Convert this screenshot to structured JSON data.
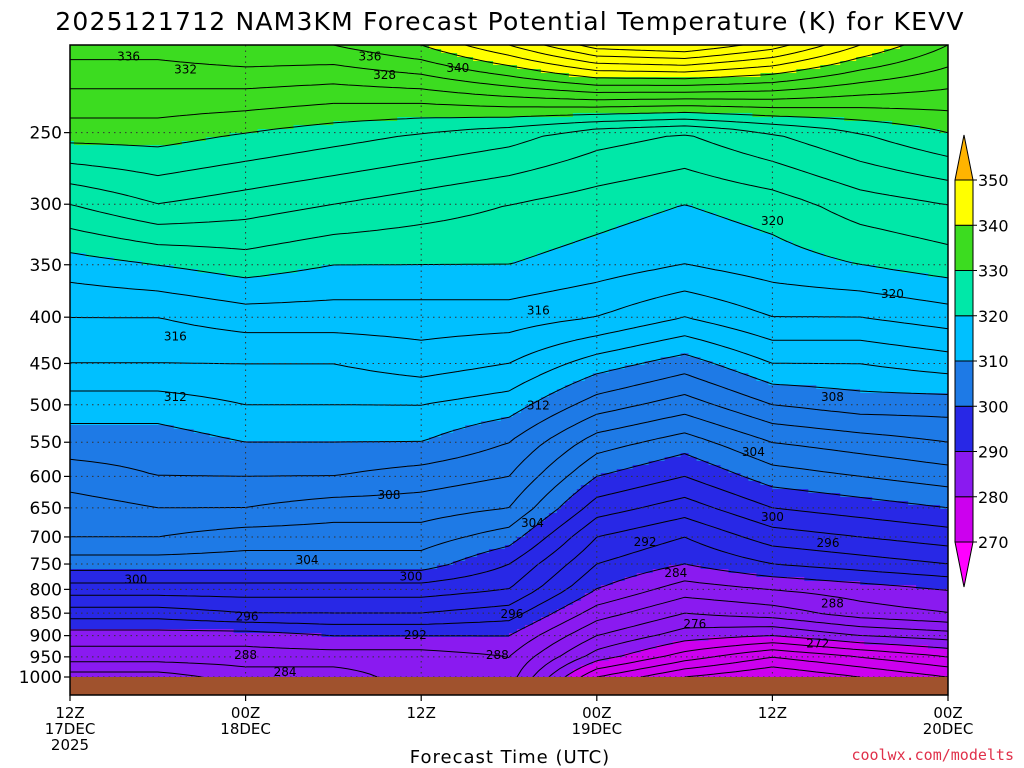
{
  "chart_data": {
    "type": "heatmap",
    "title": "2025121712 NAM3KM Forecast Potential Temperature (K) for KEVV",
    "xlabel": "Forecast Time (UTC)",
    "ylabel": "",
    "credit": "coolwx.com/modelts",
    "x_ticks": [
      {
        "hours": 0,
        "line1": "12Z",
        "line2": "17DEC",
        "line3": "2025"
      },
      {
        "hours": 12,
        "line1": "00Z",
        "line2": "18DEC",
        "line3": ""
      },
      {
        "hours": 24,
        "line1": "12Z",
        "line2": "",
        "line3": ""
      },
      {
        "hours": 36,
        "line1": "00Z",
        "line2": "19DEC",
        "line3": ""
      },
      {
        "hours": 48,
        "line1": "12Z",
        "line2": "",
        "line3": ""
      },
      {
        "hours": 60,
        "line1": "00Z",
        "line2": "20DEC",
        "line3": ""
      }
    ],
    "xlim_hours": [
      0,
      60
    ],
    "y_ticks": [
      "250",
      "300",
      "350",
      "400",
      "450",
      "500",
      "550",
      "600",
      "650",
      "700",
      "750",
      "800",
      "850",
      "900",
      "950",
      "1000"
    ],
    "y_tick_values": [
      250,
      300,
      350,
      400,
      450,
      500,
      550,
      600,
      650,
      700,
      750,
      800,
      850,
      900,
      950,
      1000
    ],
    "ylim_hPa": [
      200,
      1000
    ],
    "y_scale": "log-pressure",
    "colorbar": {
      "levels": [
        270,
        280,
        290,
        300,
        310,
        320,
        330,
        340,
        350
      ],
      "labels": [
        "270",
        "280",
        "290",
        "300",
        "310",
        "320",
        "330",
        "340",
        "350"
      ],
      "colors": [
        "#ff00ff",
        "#cc00ee",
        "#8a1af0",
        "#2828e6",
        "#1e7ae6",
        "#00c0ff",
        "#00e8a8",
        "#3cdc20",
        "#ffff00",
        "#ffb400"
      ]
    },
    "contour_interval_K": 2,
    "series": [
      {
        "name": "theta_K",
        "x_hours": [
          0,
          6,
          12,
          18,
          24,
          30,
          36,
          42,
          48,
          54,
          60
        ],
        "levels_hPa": [
          1000,
          950,
          900,
          850,
          800,
          750,
          700,
          650,
          600,
          550,
          500,
          450,
          400,
          350,
          300,
          250,
          200
        ],
        "values": [
          [
            283,
            283,
            285,
            285,
            287,
            287,
            276,
            272,
            270,
            272,
            274
          ],
          [
            287,
            287,
            287,
            287,
            287,
            288,
            281,
            277,
            274,
            276,
            278
          ],
          [
            289,
            289,
            289,
            290,
            290,
            290,
            284,
            281,
            280,
            282,
            283
          ],
          [
            293,
            293,
            294,
            294,
            294,
            293,
            287,
            284,
            285,
            287,
            288
          ],
          [
            297,
            297,
            297,
            297,
            297,
            296,
            290,
            287,
            288,
            289,
            290
          ],
          [
            301,
            301,
            301,
            301,
            301,
            298,
            292,
            290,
            292,
            293,
            294
          ],
          [
            304,
            304,
            303,
            303,
            303,
            301,
            294,
            292,
            295,
            296,
            297
          ],
          [
            305,
            306,
            306,
            305,
            305,
            304,
            297,
            295,
            298,
            299,
            300
          ],
          [
            307,
            308,
            308,
            308,
            307,
            306,
            300,
            298,
            301,
            302,
            303
          ],
          [
            309,
            309,
            310,
            310,
            310,
            308,
            303,
            301,
            304,
            305,
            306
          ],
          [
            311,
            311,
            312,
            312,
            312,
            311,
            307,
            305,
            308,
            309,
            309
          ],
          [
            314,
            314,
            314,
            314,
            315,
            314,
            311,
            309,
            312,
            312,
            313
          ],
          [
            316,
            316,
            317,
            317,
            317,
            317,
            316,
            314,
            316,
            316,
            317
          ],
          [
            319,
            320,
            321,
            320,
            320,
            320,
            319,
            318,
            319,
            320,
            321
          ],
          [
            324,
            326,
            325,
            324,
            323,
            322,
            321,
            320,
            321,
            323,
            324
          ],
          [
            331,
            331,
            330,
            329,
            328,
            327,
            325,
            324,
            326,
            328,
            330
          ],
          [
            337,
            337,
            338,
            338,
            340,
            344,
            349,
            350,
            347,
            342,
            338
          ]
        ]
      }
    ],
    "contour_labels": [
      {
        "text": "336",
        "hours": 4,
        "p": 206
      },
      {
        "text": "332",
        "hours": 7.9,
        "p": 213
      },
      {
        "text": "336",
        "hours": 20.5,
        "p": 206
      },
      {
        "text": "328",
        "hours": 21.5,
        "p": 216
      },
      {
        "text": "340",
        "hours": 26.5,
        "p": 212
      },
      {
        "text": "316",
        "hours": 7.2,
        "p": 420
      },
      {
        "text": "316",
        "hours": 32,
        "p": 393
      },
      {
        "text": "312",
        "hours": 7.2,
        "p": 490
      },
      {
        "text": "312",
        "hours": 32,
        "p": 501
      },
      {
        "text": "308",
        "hours": 21.8,
        "p": 629
      },
      {
        "text": "304",
        "hours": 31.6,
        "p": 676
      },
      {
        "text": "304",
        "hours": 16.2,
        "p": 742
      },
      {
        "text": "300",
        "hours": 4.5,
        "p": 780
      },
      {
        "text": "300",
        "hours": 23.3,
        "p": 774
      },
      {
        "text": "296",
        "hours": 12.1,
        "p": 857
      },
      {
        "text": "296",
        "hours": 30.2,
        "p": 852
      },
      {
        "text": "292",
        "hours": 23.6,
        "p": 899
      },
      {
        "text": "288",
        "hours": 12,
        "p": 945
      },
      {
        "text": "288",
        "hours": 29.2,
        "p": 945
      },
      {
        "text": "284",
        "hours": 14.7,
        "p": 987
      },
      {
        "text": "292",
        "hours": 39.3,
        "p": 709
      },
      {
        "text": "284",
        "hours": 41.4,
        "p": 767
      },
      {
        "text": "276",
        "hours": 42.7,
        "p": 874
      },
      {
        "text": "272",
        "hours": 51.1,
        "p": 918
      },
      {
        "text": "288",
        "hours": 52.1,
        "p": 829
      },
      {
        "text": "296",
        "hours": 51.8,
        "p": 711
      },
      {
        "text": "300",
        "hours": 48,
        "p": 665
      },
      {
        "text": "304",
        "hours": 46.7,
        "p": 564
      },
      {
        "text": "308",
        "hours": 52.1,
        "p": 490
      },
      {
        "text": "320",
        "hours": 48,
        "p": 313
      },
      {
        "text": "320",
        "hours": 56.2,
        "p": 377
      }
    ]
  }
}
